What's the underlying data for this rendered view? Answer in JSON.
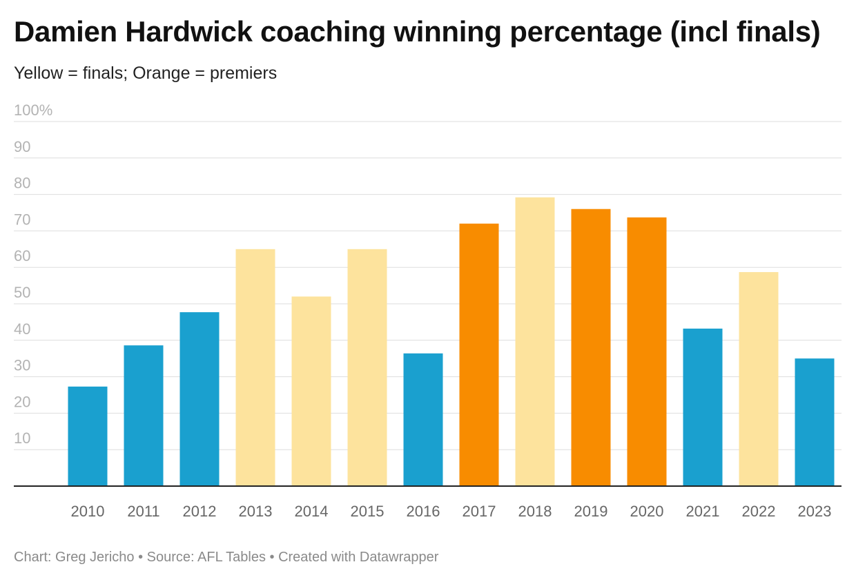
{
  "chart_data": {
    "type": "bar",
    "title": "Damien Hardwick coaching winning percentage (incl finals)",
    "subtitle": "Yellow = finals; Orange = premiers",
    "categories": [
      "2010",
      "2011",
      "2012",
      "2013",
      "2014",
      "2015",
      "2016",
      "2017",
      "2018",
      "2019",
      "2020",
      "2021",
      "2022",
      "2023"
    ],
    "values": [
      27.3,
      38.6,
      47.7,
      65.0,
      52.0,
      65.0,
      36.4,
      72.0,
      79.2,
      76.0,
      73.7,
      43.2,
      58.7,
      35.0
    ],
    "status": [
      "none",
      "none",
      "none",
      "finals",
      "finals",
      "finals",
      "none",
      "premiers",
      "finals",
      "premiers",
      "premiers",
      "none",
      "finals",
      "none"
    ],
    "colors": {
      "none": "#1aa0cf",
      "finals": "#fde39d",
      "premiers": "#f88c00"
    },
    "ylim": [
      0,
      100
    ],
    "yticks": [
      {
        "value": 10,
        "label": "10"
      },
      {
        "value": 20,
        "label": "20"
      },
      {
        "value": 30,
        "label": "30"
      },
      {
        "value": 40,
        "label": "40"
      },
      {
        "value": 50,
        "label": "50"
      },
      {
        "value": 60,
        "label": "60"
      },
      {
        "value": 70,
        "label": "70"
      },
      {
        "value": 80,
        "label": "80"
      },
      {
        "value": 90,
        "label": "90"
      },
      {
        "value": 100,
        "label": "100%"
      }
    ],
    "grid": true,
    "legend": "none",
    "xlabel": "",
    "ylabel": ""
  },
  "footer": "Chart: Greg Jericho • Source: AFL Tables • Created with Datawrapper"
}
